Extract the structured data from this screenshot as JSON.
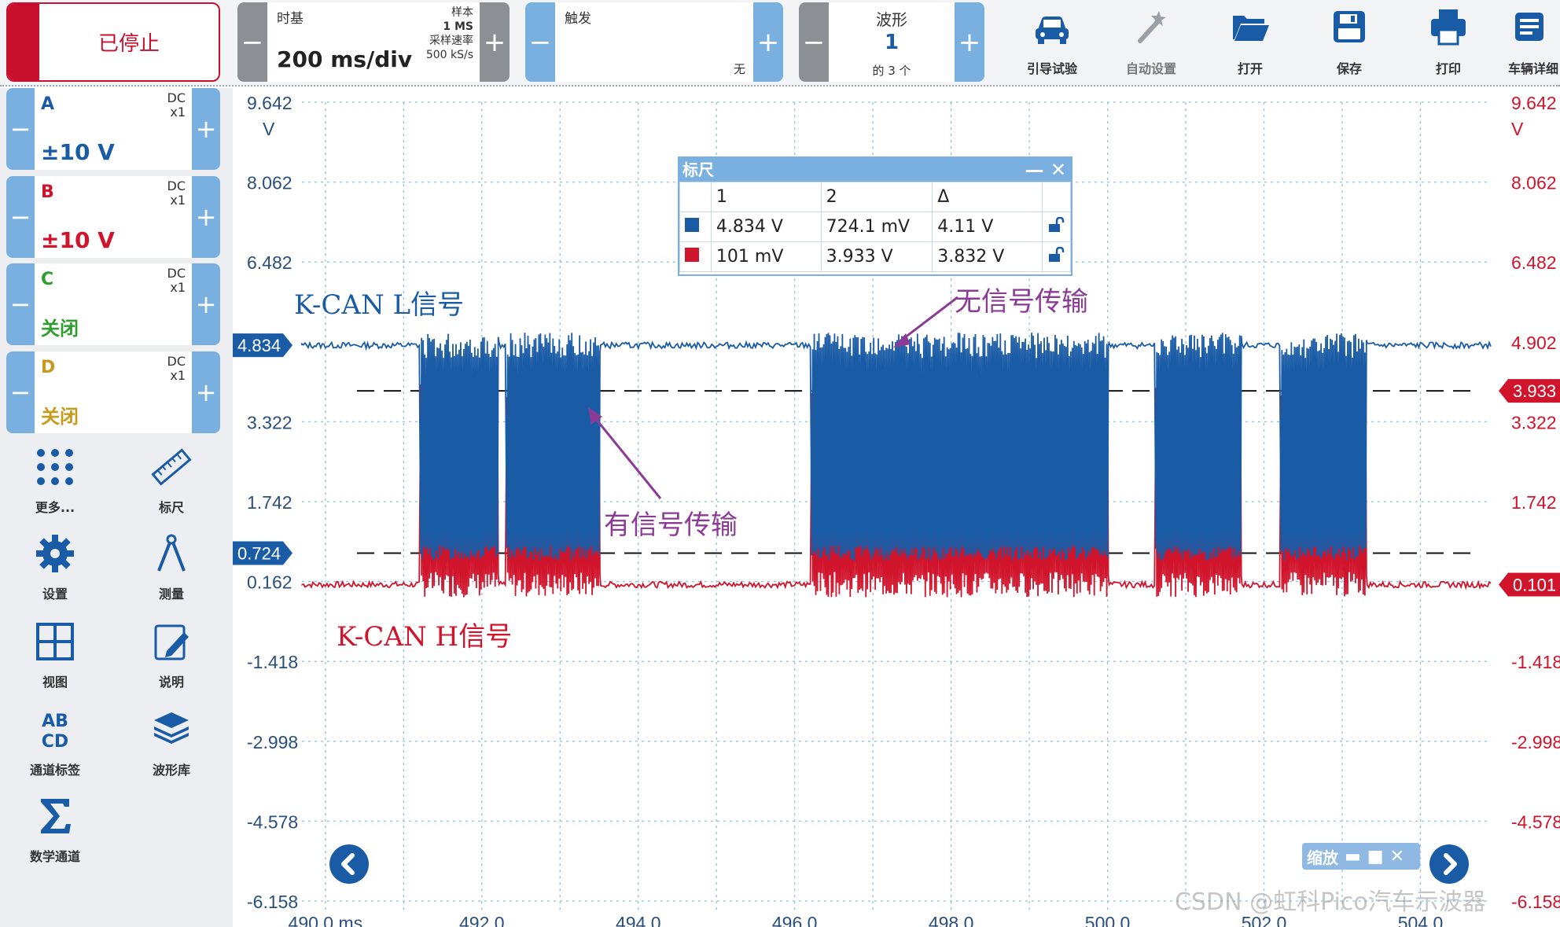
{
  "toolbar": {
    "stop_label": "已停止",
    "timebase": {
      "title": "时基",
      "value": "200 ms/div",
      "sample_label": "样本",
      "samples": "1 MS",
      "rate_label": "采样速率",
      "rate": "500 kS/s"
    },
    "trigger": {
      "title": "触发",
      "mode": "无"
    },
    "waveform": {
      "title": "波形",
      "index": "1",
      "of": "的 3 个"
    },
    "tools": [
      {
        "icon": "car-icon",
        "label": "引导试验",
        "enabled": true
      },
      {
        "icon": "magic-wand-icon",
        "label": "自动设置",
        "enabled": false
      },
      {
        "icon": "folder-open-icon",
        "label": "打开",
        "enabled": true
      },
      {
        "icon": "floppy-disk-icon",
        "label": "保存",
        "enabled": true
      },
      {
        "icon": "printer-icon",
        "label": "打印",
        "enabled": true
      },
      {
        "icon": "vehicle-details-icon",
        "label": "车辆详细",
        "enabled": true
      }
    ]
  },
  "channels": [
    {
      "name": "A",
      "coupling": "DC",
      "probe": "x1",
      "range": "±10 V",
      "color": "#1a5ba6"
    },
    {
      "name": "B",
      "coupling": "DC",
      "probe": "x1",
      "range": "±10 V",
      "color": "#d0142c"
    },
    {
      "name": "C",
      "coupling": "DC",
      "probe": "x1",
      "range": "关闭",
      "color": "#2e9e2e"
    },
    {
      "name": "D",
      "coupling": "DC",
      "probe": "x1",
      "range": "关闭",
      "color": "#c79a1c"
    }
  ],
  "left_tools": [
    {
      "icon": "more-dots-icon",
      "label": "更多..."
    },
    {
      "icon": "ruler-icon",
      "label": "标尺"
    },
    {
      "icon": "settings-gear-icon",
      "label": "设置"
    },
    {
      "icon": "measure-compass-icon",
      "label": "测量"
    },
    {
      "icon": "view-grid-icon",
      "label": "视图"
    },
    {
      "icon": "notes-icon",
      "label": "说明"
    },
    {
      "icon": "channel-labels-icon",
      "label": "通道标签"
    },
    {
      "icon": "waveform-library-icon",
      "label": "波形库"
    },
    {
      "icon": "sigma-icon",
      "label": "数学通道"
    }
  ],
  "axes": {
    "y_labels": [
      "9.642",
      "8.062",
      "6.482",
      "3.322",
      "1.742",
      "0.162",
      "-1.418",
      "-2.998",
      "-4.578",
      "-6.158"
    ],
    "y_unit": "V",
    "right_y_labels": [
      "9.642",
      "8.062",
      "6.482",
      "4.902",
      "3.322",
      "1.742",
      "-1.418",
      "-2.998",
      "-4.578",
      "-6.158"
    ],
    "x_labels": [
      "490.0 ms",
      "492.0",
      "494.0",
      "496.0",
      "498.0",
      "500.0",
      "502.0",
      "504.0"
    ],
    "marker_left_a": "4.834",
    "marker_left_b": "0.724",
    "marker_right_1": "3.933",
    "marker_right_2": "0.101"
  },
  "ruler_panel": {
    "title": "标尺",
    "columns": [
      "1",
      "2",
      "Δ"
    ],
    "rows": [
      {
        "color": "#1a5ba6",
        "v1": "4.834 V",
        "v2": "724.1 mV",
        "delta": "4.11 V"
      },
      {
        "color": "#d0142c",
        "v1": "101 mV",
        "v2": "3.933 V",
        "delta": "3.832 V"
      }
    ]
  },
  "annotations": {
    "kcan_l": "K-CAN L信号",
    "kcan_h": "K-CAN H信号",
    "no_signal": "无信号传输",
    "has_signal": "有信号传输"
  },
  "zoom": {
    "label": "缩放"
  },
  "watermark": "CSDN @虹科Pico汽车示波器",
  "chart_data": {
    "type": "line",
    "xlim": [
      489.7,
      504.9
    ],
    "ylim": [
      -6.158,
      9.642
    ],
    "series": [
      {
        "name": "A",
        "idle": 4.834,
        "dominant": 0.724
      },
      {
        "name": "B",
        "idle": 0.101,
        "dominant": 3.933
      }
    ],
    "bursts_ms": [
      [
        491.2,
        492.2
      ],
      [
        492.3,
        493.5
      ],
      [
        496.2,
        498.0
      ],
      [
        498.0,
        500.0
      ],
      [
        500.6,
        501.7
      ],
      [
        502.2,
        503.3
      ]
    ],
    "grid": true
  }
}
